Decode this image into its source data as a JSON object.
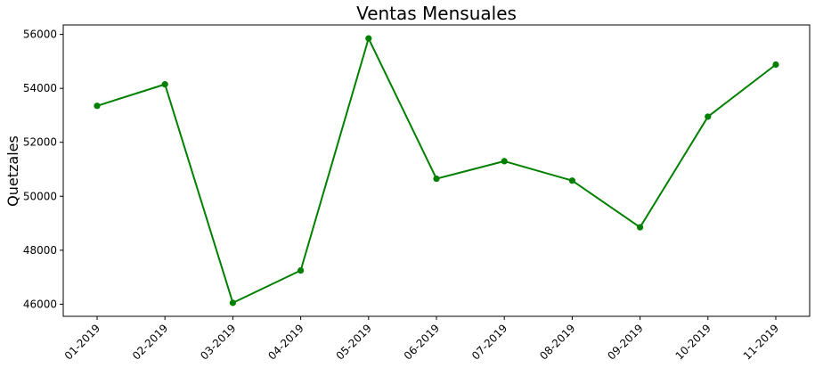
{
  "chart_data": {
    "type": "line",
    "title": "Ventas Mensuales",
    "xlabel": "",
    "ylabel": "Quetzales",
    "categories": [
      "01-2019",
      "02-2019",
      "03-2019",
      "04-2019",
      "05-2019",
      "06-2019",
      "07-2019",
      "08-2019",
      "09-2019",
      "10-2019",
      "11-2019"
    ],
    "series": [
      {
        "values": [
          53350,
          54150,
          46050,
          47250,
          55850,
          50650,
          51300,
          50580,
          48850,
          52950,
          54880
        ]
      }
    ],
    "ylim": [
      45550,
      56350
    ],
    "yticks": [
      46000,
      48000,
      50000,
      52000,
      54000,
      56000
    ],
    "ytick_labels": [
      "46000",
      "48000",
      "50000",
      "52000",
      "54000",
      "56000"
    ],
    "grid": false,
    "legend": "none",
    "colors": {
      "line": "#008000",
      "marker": "#008000"
    }
  }
}
